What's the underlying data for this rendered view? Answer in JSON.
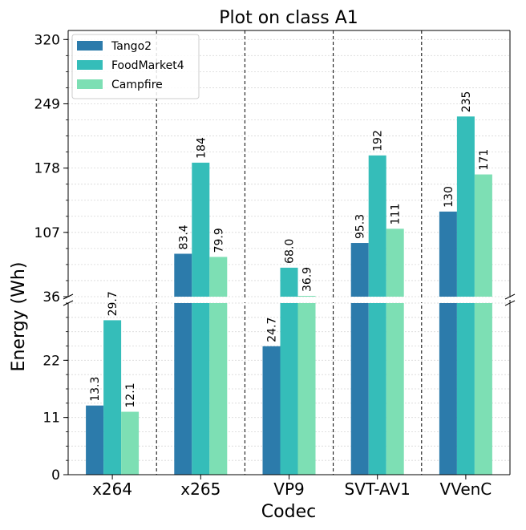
{
  "chart_data": {
    "type": "bar",
    "title": "Plot on class A1",
    "xlabel": "Codec",
    "ylabel": "Energy (Wh)",
    "categories": [
      "x264",
      "x265",
      "VP9",
      "SVT-AV1",
      "VVenC"
    ],
    "series": [
      {
        "name": "Tango2",
        "values": [
          13.3,
          83.4,
          24.7,
          95.3,
          130
        ],
        "labels": [
          "13.3",
          "83.4",
          "24.7",
          "95.3",
          "130"
        ]
      },
      {
        "name": "FoodMarket4",
        "values": [
          29.7,
          184,
          68.0,
          192,
          235
        ],
        "labels": [
          "29.7",
          "184",
          "68.0",
          "192",
          "235"
        ]
      },
      {
        "name": "Campfire",
        "values": [
          12.1,
          79.9,
          36.9,
          111,
          171
        ],
        "labels": [
          "12.1",
          "79.9",
          "36.9",
          "111",
          "171"
        ]
      }
    ],
    "y_axis": {
      "broken": true,
      "lower_range": [
        0,
        33
      ],
      "upper_range": [
        36,
        330
      ],
      "lower_ticks": [
        "0",
        "11",
        "22"
      ],
      "upper_ticks": [
        "36",
        "107",
        "178",
        "249",
        "320"
      ]
    },
    "legend_position": "top-left",
    "grid": true,
    "colors": {
      "Tango2": "#2c7bab",
      "FoodMarket4": "#35bdb9",
      "Campfire": "#7ddfb4"
    }
  }
}
